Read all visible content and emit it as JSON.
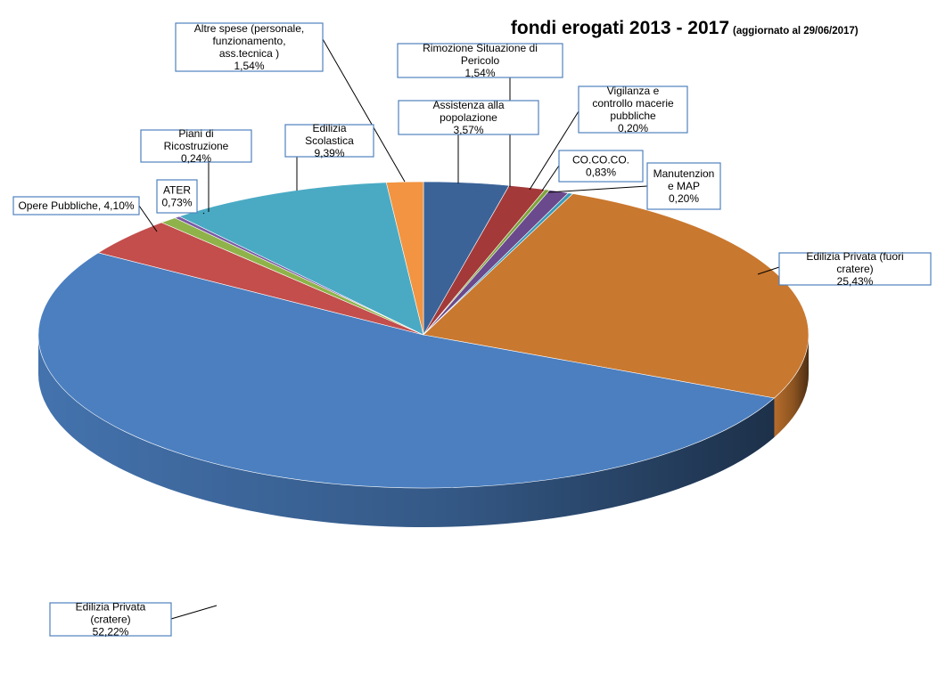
{
  "chart_data": {
    "type": "pie",
    "title": "fondi erogati 2013 - 2017",
    "subtitle": "(aggiornato al 29/06/2017)",
    "three_d": true,
    "legend": "none",
    "slices": [
      {
        "label": "Assistenza alla popolazione",
        "value": 3.57,
        "value_label": "3,57%",
        "color": "#3b6398"
      },
      {
        "label": "Rimozione Situazione di Pericolo",
        "value": 1.54,
        "value_label": "1,54%",
        "color": "#a33a39"
      },
      {
        "label": "Vigilanza e controllo macerie pubbliche",
        "value": 0.2,
        "value_label": "0,20%",
        "color": "#7da33a"
      },
      {
        "label": "CO.CO.CO.",
        "value": 0.83,
        "value_label": "0,83%",
        "color": "#6a4a8c"
      },
      {
        "label": "Manutenzion e MAP",
        "value": 0.2,
        "value_label": "0,20%",
        "color": "#3a9ab7"
      },
      {
        "label": "Edilizia Privata (fuori cratere)",
        "value": 25.43,
        "value_label": "25,43%",
        "color": "#c9782f"
      },
      {
        "label": "Edilizia Privata (cratere)",
        "value": 52.22,
        "value_label": "52,22%",
        "color": "#4b7fc0"
      },
      {
        "label": "Opere Pubbliche",
        "value": 4.1,
        "value_label": "4,10%",
        "color": "#c34e4c"
      },
      {
        "label": "ATER",
        "value": 0.73,
        "value_label": "0,73%",
        "color": "#8fb34a"
      },
      {
        "label": "Piani di Ricostruzione",
        "value": 0.24,
        "value_label": "0,24%",
        "color": "#7b5aa6"
      },
      {
        "label": "Edilizia Scolastica",
        "value": 9.39,
        "value_label": "9,39%",
        "color": "#4aaac4"
      },
      {
        "label": "Altre spese (personale, funzionamento, ass.tecnica )",
        "value": 1.54,
        "value_label": "1,54%",
        "color": "#f29441"
      }
    ]
  }
}
